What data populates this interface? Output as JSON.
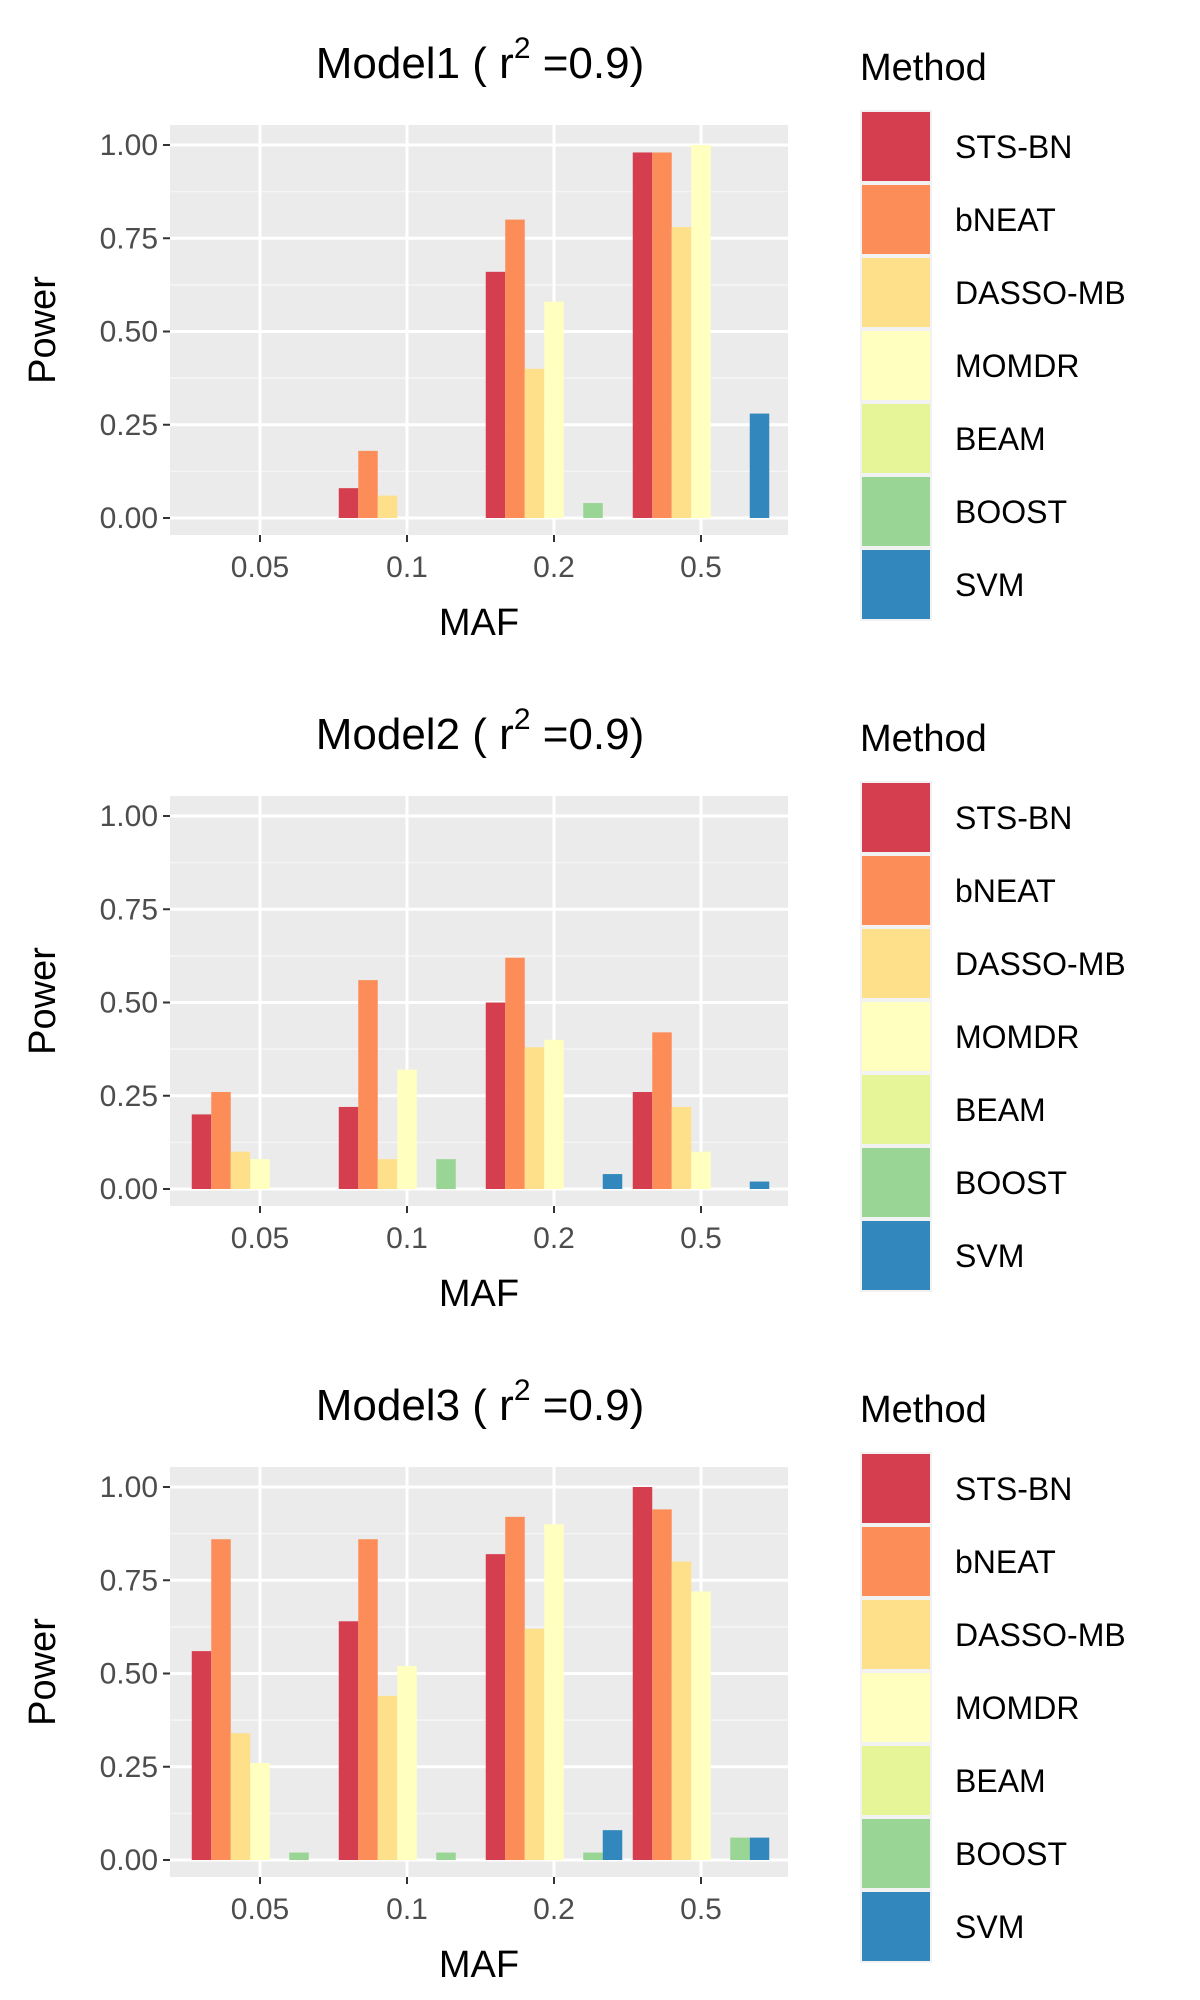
{
  "legend": {
    "title": "Method",
    "entries": [
      {
        "name": "STS-BN",
        "color": "#D53E4F"
      },
      {
        "name": "bNEAT",
        "color": "#FC8D59"
      },
      {
        "name": "DASSO-MB",
        "color": "#FEE08B"
      },
      {
        "name": "MOMDR",
        "color": "#FFFFBF"
      },
      {
        "name": "BEAM",
        "color": "#E6F598"
      },
      {
        "name": "BOOST",
        "color": "#99D594"
      },
      {
        "name": "SVM",
        "color": "#3288BD"
      }
    ]
  },
  "chart_data": [
    {
      "type": "bar",
      "title": "Model1",
      "title_suffix": "( r",
      "title_sup": "2",
      "title_end": " =0.9)",
      "xlabel": "MAF",
      "ylabel": "Power",
      "categories": [
        "0.05",
        "0.1",
        "0.2",
        "0.5"
      ],
      "ylim": [
        0,
        1
      ],
      "yticks": [
        "0.00",
        "0.25",
        "0.50",
        "0.75",
        "1.00"
      ],
      "series": [
        {
          "name": "STS-BN",
          "values": [
            0,
            0.08,
            0.66,
            0.98
          ]
        },
        {
          "name": "bNEAT",
          "values": [
            0,
            0.18,
            0.8,
            0.98
          ]
        },
        {
          "name": "DASSO-MB",
          "values": [
            0,
            0.06,
            0.4,
            0.78
          ]
        },
        {
          "name": "MOMDR",
          "values": [
            0,
            0,
            0.58,
            1.0
          ]
        },
        {
          "name": "BEAM",
          "values": [
            0,
            0,
            0,
            0
          ]
        },
        {
          "name": "BOOST",
          "values": [
            0,
            0,
            0.04,
            0
          ]
        },
        {
          "name": "SVM",
          "values": [
            0,
            0,
            0,
            0.28
          ]
        }
      ]
    },
    {
      "type": "bar",
      "title": "Model2",
      "title_suffix": "( r",
      "title_sup": "2",
      "title_end": " =0.9)",
      "xlabel": "MAF",
      "ylabel": "Power",
      "categories": [
        "0.05",
        "0.1",
        "0.2",
        "0.5"
      ],
      "ylim": [
        0,
        1
      ],
      "yticks": [
        "0.00",
        "0.25",
        "0.50",
        "0.75",
        "1.00"
      ],
      "series": [
        {
          "name": "STS-BN",
          "values": [
            0.2,
            0.22,
            0.5,
            0.26
          ]
        },
        {
          "name": "bNEAT",
          "values": [
            0.26,
            0.56,
            0.62,
            0.42
          ]
        },
        {
          "name": "DASSO-MB",
          "values": [
            0.1,
            0.08,
            0.38,
            0.22
          ]
        },
        {
          "name": "MOMDR",
          "values": [
            0.08,
            0.32,
            0.4,
            0.1
          ]
        },
        {
          "name": "BEAM",
          "values": [
            0,
            0,
            0,
            0
          ]
        },
        {
          "name": "BOOST",
          "values": [
            0,
            0.08,
            0,
            0
          ]
        },
        {
          "name": "SVM",
          "values": [
            0,
            0,
            0.04,
            0.02
          ]
        }
      ]
    },
    {
      "type": "bar",
      "title": "Model3",
      "title_suffix": "( r",
      "title_sup": "2",
      "title_end": " =0.9)",
      "xlabel": "MAF",
      "ylabel": "Power",
      "categories": [
        "0.05",
        "0.1",
        "0.2",
        "0.5"
      ],
      "ylim": [
        0,
        1
      ],
      "yticks": [
        "0.00",
        "0.25",
        "0.50",
        "0.75",
        "1.00"
      ],
      "series": [
        {
          "name": "STS-BN",
          "values": [
            0.56,
            0.64,
            0.82,
            1.0
          ]
        },
        {
          "name": "bNEAT",
          "values": [
            0.86,
            0.86,
            0.92,
            0.94
          ]
        },
        {
          "name": "DASSO-MB",
          "values": [
            0.34,
            0.44,
            0.62,
            0.8
          ]
        },
        {
          "name": "MOMDR",
          "values": [
            0.26,
            0.52,
            0.9,
            0.72
          ]
        },
        {
          "name": "BEAM",
          "values": [
            0,
            0,
            0,
            0
          ]
        },
        {
          "name": "BOOST",
          "values": [
            0.02,
            0.02,
            0.02,
            0.06
          ]
        },
        {
          "name": "SVM",
          "values": [
            0,
            0,
            0.08,
            0.06
          ]
        }
      ]
    }
  ]
}
